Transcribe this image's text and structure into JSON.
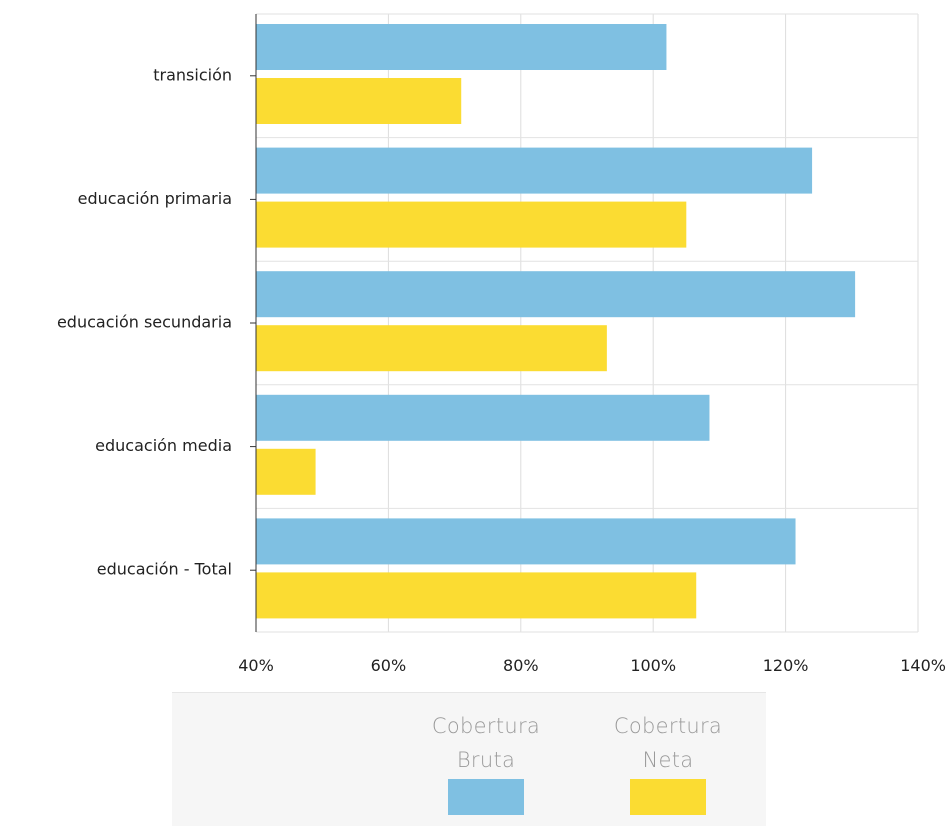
{
  "chart_data": {
    "type": "bar",
    "orientation": "horizontal",
    "categories": [
      "transición",
      "educación primaria",
      "educación secundaria",
      "educación media",
      "educación - Total"
    ],
    "series": [
      {
        "name": "Cobertura Bruta",
        "color": "#7fc0e2",
        "values": [
          102,
          124,
          130.5,
          108.5,
          121.5
        ]
      },
      {
        "name": "Cobertura Neta",
        "color": "#fbdc32",
        "values": [
          71,
          105,
          93,
          49,
          106.5
        ]
      }
    ],
    "x_ticks": [
      "40%",
      "60%",
      "80%",
      "100%",
      "120%",
      "140%"
    ],
    "xlim": [
      40,
      140
    ],
    "grid": true,
    "legend_position": "bottom"
  },
  "legend": {
    "items": [
      {
        "line1": "Cobertura",
        "line2": "Bruta",
        "color": "#7fc0e2"
      },
      {
        "line1": "Cobertura",
        "line2": "Neta",
        "color": "#fbdc32"
      }
    ]
  }
}
